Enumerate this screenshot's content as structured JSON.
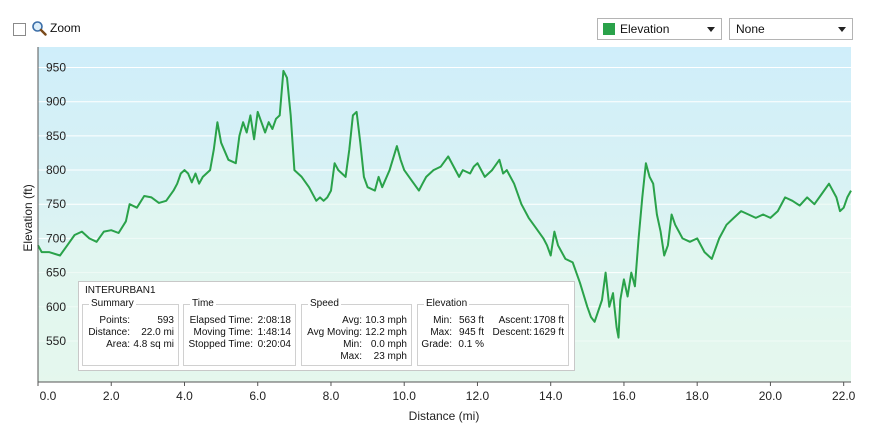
{
  "toolbar": {
    "zoom_label": "Zoom",
    "series_select": "Elevation",
    "series_color": "#2aa24a",
    "secondary_select": "None"
  },
  "summary_box": {
    "title": "INTERURBAN1",
    "summary": {
      "heading": "Summary",
      "rows": [
        {
          "label": "Points:",
          "value": "593"
        },
        {
          "label": "Distance:",
          "value": "22.0 mi"
        },
        {
          "label": "Area:",
          "value": "4.8 sq mi"
        }
      ]
    },
    "time": {
      "heading": "Time",
      "rows": [
        {
          "label": "Elapsed Time:",
          "value": "2:08:18"
        },
        {
          "label": "Moving Time:",
          "value": "1:48:14"
        },
        {
          "label": "Stopped Time:",
          "value": "0:20:04"
        }
      ]
    },
    "speed": {
      "heading": "Speed",
      "rows": [
        {
          "label": "Avg:",
          "value": "10.3 mph"
        },
        {
          "label": "Avg Moving:",
          "value": "12.2 mph"
        },
        {
          "label": "Min:",
          "value": "0.0 mph"
        },
        {
          "label": "Max:",
          "value": "23 mph"
        }
      ]
    },
    "elevation": {
      "heading": "Elevation",
      "left_rows": [
        {
          "label": "Min:",
          "value": "563 ft"
        },
        {
          "label": "Max:",
          "value": "945 ft"
        },
        {
          "label": "Grade:",
          "value": "0.1 %"
        }
      ],
      "right_rows": [
        {
          "label": "Ascent:",
          "value": "1708 ft"
        },
        {
          "label": "Descent:",
          "value": "1629 ft"
        }
      ]
    }
  },
  "chart_data": {
    "type": "area",
    "title": "",
    "xlabel": "Distance  (mi)",
    "ylabel": "Elevation (ft)",
    "xlim": [
      0,
      22.2
    ],
    "ylim": [
      490,
      980
    ],
    "x_ticks": [
      "0.0",
      "2.0",
      "4.0",
      "6.0",
      "8.0",
      "10.0",
      "12.0",
      "14.0",
      "16.0",
      "18.0",
      "20.0",
      "22.0"
    ],
    "x_tick_values": [
      0,
      2,
      4,
      6,
      8,
      10,
      12,
      14,
      16,
      18,
      20,
      22
    ],
    "y_ticks": [
      "950",
      "900",
      "850",
      "800",
      "750",
      "700",
      "650",
      "600",
      "550"
    ],
    "y_tick_values": [
      950,
      900,
      850,
      800,
      750,
      700,
      650,
      600,
      550
    ],
    "grid": true,
    "line_color": "#2aa24a",
    "fill_top_color": "#cfeefa",
    "fill_bottom_color": "#e6f7ec",
    "series": [
      {
        "x": [
          0,
          0.1,
          0.3,
          0.6,
          0.8,
          1.0,
          1.2,
          1.4,
          1.6,
          1.8,
          2.0,
          2.2,
          2.4,
          2.5,
          2.7,
          2.9,
          3.1,
          3.3,
          3.5,
          3.7,
          3.8,
          3.9,
          4.0,
          4.1,
          4.2,
          4.3,
          4.4,
          4.5,
          4.7,
          4.8,
          4.9,
          5.0,
          5.2,
          5.4,
          5.5,
          5.6,
          5.7,
          5.8,
          5.9,
          6.0,
          6.1,
          6.2,
          6.3,
          6.4,
          6.5,
          6.6,
          6.7,
          6.8,
          6.9,
          7.0,
          7.2,
          7.4,
          7.6,
          7.7,
          7.8,
          7.9,
          8.0,
          8.1,
          8.2,
          8.4,
          8.5,
          8.6,
          8.7,
          8.8,
          8.9,
          9.0,
          9.2,
          9.3,
          9.4,
          9.6,
          9.8,
          9.9,
          10.0,
          10.2,
          10.4,
          10.5,
          10.6,
          10.8,
          11.0,
          11.2,
          11.4,
          11.5,
          11.6,
          11.8,
          11.9,
          12.0,
          12.2,
          12.4,
          12.6,
          12.7,
          12.8,
          13.0,
          13.2,
          13.4,
          13.6,
          13.8,
          13.9,
          14.0,
          14.1,
          14.2,
          14.4,
          14.6,
          14.8,
          15.0,
          15.1,
          15.2,
          15.4,
          15.5,
          15.6,
          15.7,
          15.8,
          15.85,
          15.9,
          16.0,
          16.1,
          16.2,
          16.3,
          16.4,
          16.5,
          16.6,
          16.7,
          16.8,
          16.9,
          17.0,
          17.1,
          17.2,
          17.3,
          17.4,
          17.5,
          17.6,
          17.8,
          18.0,
          18.2,
          18.4,
          18.6,
          18.8,
          19.0,
          19.2,
          19.4,
          19.6,
          19.8,
          20.0,
          20.2,
          20.4,
          20.6,
          20.8,
          21.0,
          21.2,
          21.4,
          21.6,
          21.8,
          21.9,
          22.0,
          22.1,
          22.2
        ],
        "y": [
          690,
          680,
          680,
          675,
          690,
          705,
          710,
          700,
          695,
          710,
          712,
          708,
          725,
          750,
          745,
          762,
          760,
          752,
          755,
          770,
          780,
          795,
          800,
          795,
          782,
          795,
          780,
          790,
          800,
          830,
          870,
          840,
          815,
          810,
          850,
          870,
          855,
          880,
          845,
          885,
          870,
          855,
          870,
          860,
          875,
          880,
          945,
          935,
          880,
          800,
          790,
          775,
          755,
          760,
          755,
          760,
          770,
          810,
          800,
          790,
          830,
          880,
          885,
          840,
          790,
          775,
          770,
          790,
          775,
          800,
          835,
          815,
          800,
          785,
          770,
          780,
          790,
          800,
          805,
          820,
          800,
          790,
          800,
          795,
          805,
          810,
          790,
          800,
          815,
          795,
          800,
          780,
          750,
          730,
          715,
          700,
          690,
          675,
          710,
          690,
          670,
          665,
          635,
          600,
          585,
          578,
          610,
          650,
          600,
          620,
          570,
          555,
          610,
          640,
          615,
          650,
          630,
          700,
          760,
          810,
          790,
          780,
          735,
          710,
          675,
          690,
          735,
          720,
          710,
          700,
          695,
          700,
          680,
          670,
          700,
          720,
          730,
          740,
          735,
          730,
          735,
          730,
          740,
          760,
          755,
          748,
          760,
          750,
          765,
          780,
          760,
          740,
          745,
          760,
          770
        ]
      }
    ]
  }
}
